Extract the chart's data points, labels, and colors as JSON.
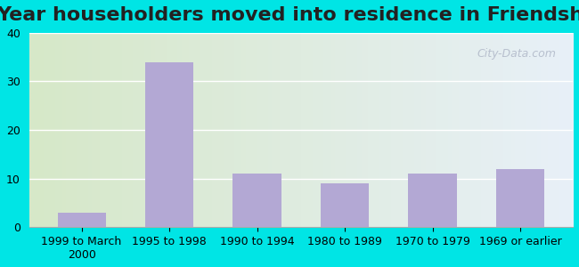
{
  "title": "Year householders moved into residence in Friendship",
  "categories": [
    "1999 to March\n2000",
    "1995 to 1998",
    "1990 to 1994",
    "1980 to 1989",
    "1970 to 1979",
    "1969 or earlier"
  ],
  "values": [
    3,
    34,
    11,
    9,
    11,
    12
  ],
  "bar_color": "#b3a8d4",
  "ylim": [
    0,
    40
  ],
  "yticks": [
    0,
    10,
    20,
    30,
    40
  ],
  "background_outer": "#00e5e5",
  "background_inner_left": "#d6e8c8",
  "background_inner_right": "#e8f0f8",
  "grid_color": "#ffffff",
  "title_fontsize": 16,
  "tick_fontsize": 9,
  "watermark": "City-Data.com"
}
